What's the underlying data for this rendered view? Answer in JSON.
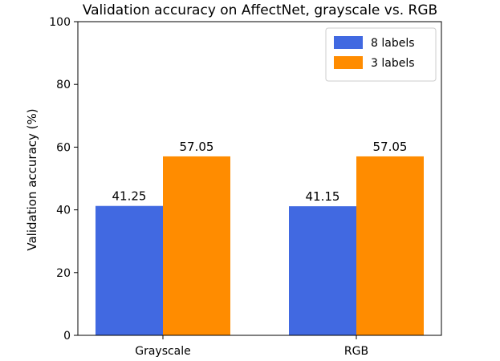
{
  "chart_data": {
    "type": "bar",
    "title": "Validation accuracy on AffectNet, grayscale vs. RGB",
    "xlabel": "",
    "ylabel": "Validation accuracy (%)",
    "categories": [
      "Grayscale",
      "RGB"
    ],
    "series": [
      {
        "name": "8 labels",
        "values": [
          41.25,
          41.15
        ],
        "labels": [
          "41.25",
          "41.15"
        ],
        "color": "#4169e1"
      },
      {
        "name": "3 labels",
        "values": [
          57.05,
          57.05
        ],
        "labels": [
          "57.05",
          "57.05"
        ],
        "color": "#ff8c00"
      }
    ],
    "ylim": [
      0,
      100
    ],
    "yticks": [
      0,
      20,
      40,
      60,
      80,
      100
    ],
    "grid": false,
    "legend": "top-right"
  }
}
